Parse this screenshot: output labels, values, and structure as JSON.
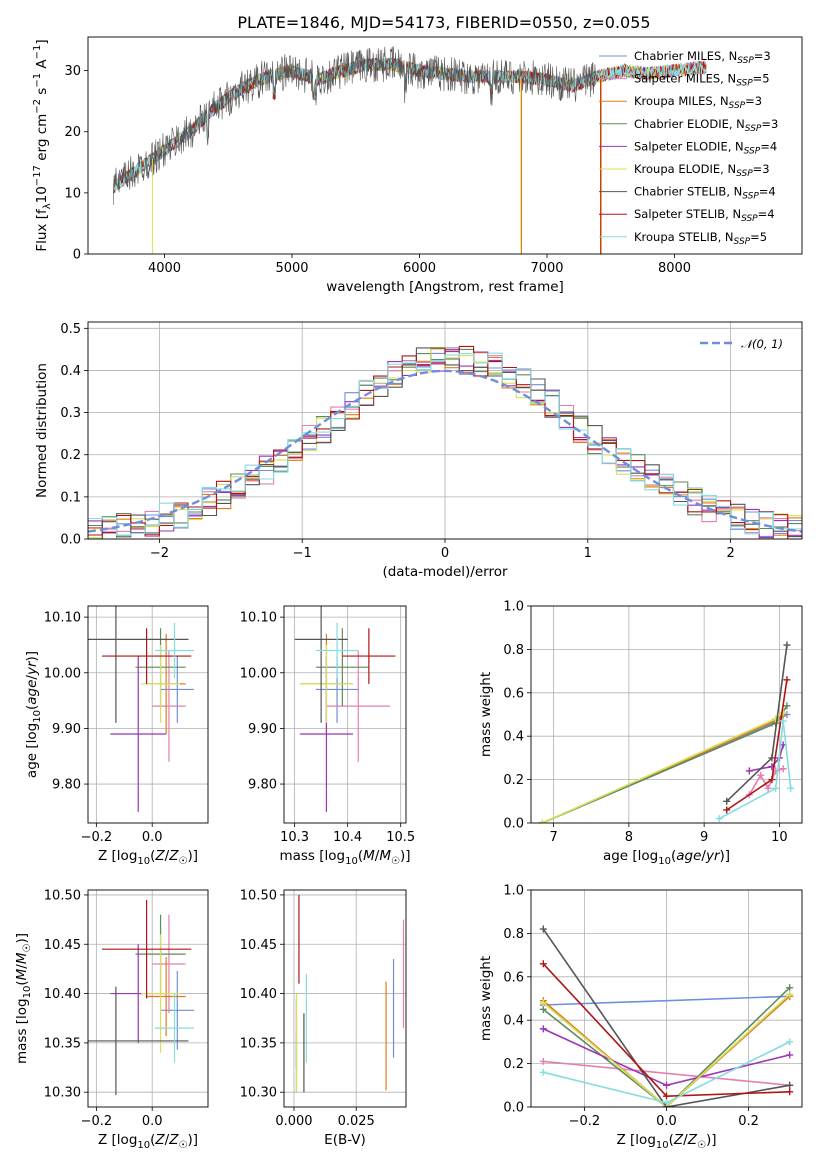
{
  "title": "PLATE=1846, MJD=54173, FIBERID=0550, z=0.055",
  "colors": {
    "Chabrier MILES": "#6f8fdc",
    "Salpeter MILES": "#e57fb0",
    "Kroupa MILES": "#e07b1c",
    "Chabrier ELODIE": "#5f8a5f",
    "Salpeter ELODIE": "#9b35b8",
    "Kroupa ELODIE": "#d7e05a",
    "Chabrier STELIB": "#555555",
    "Salpeter STELIB": "#b01515",
    "Kroupa STELIB": "#84dde0",
    "normal": "#6f8fdc",
    "grid": "#b0b0b0"
  },
  "chart_data": [
    {
      "id": "spectrum",
      "type": "line",
      "xlabel": "wavelength [Angstrom, rest frame]",
      "ylabel": "Flux [f_λ 10^-17 erg cm^-2 s^-1 A^-1]",
      "xlim": [
        3400,
        9000
      ],
      "ylim": [
        0,
        35.5
      ],
      "xticks": [
        4000,
        5000,
        6000,
        7000,
        8000
      ],
      "yticks": [
        0,
        10,
        20,
        30
      ],
      "grid": false,
      "legend_position": "right",
      "legend": [
        {
          "name": "Chabrier MILES",
          "sub": "N",
          "subscript": "SSP",
          "suffix": "=3"
        },
        {
          "name": "Salpeter MILES",
          "sub": "N",
          "subscript": "SSP",
          "suffix": "=5"
        },
        {
          "name": "Kroupa MILES",
          "sub": "N",
          "subscript": "SSP",
          "suffix": "=3"
        },
        {
          "name": "Chabrier ELODIE",
          "sub": "N",
          "subscript": "SSP",
          "suffix": "=3"
        },
        {
          "name": "Salpeter ELODIE",
          "sub": "N",
          "subscript": "SSP",
          "suffix": "=4"
        },
        {
          "name": "Kroupa ELODIE",
          "sub": "N",
          "subscript": "SSP",
          "suffix": "=3"
        },
        {
          "name": "Chabrier STELIB",
          "sub": "N",
          "subscript": "SSP",
          "suffix": "=4"
        },
        {
          "name": "Salpeter STELIB",
          "sub": "N",
          "subscript": "SSP",
          "suffix": "=4"
        },
        {
          "name": "Kroupa STELIB",
          "sub": "N",
          "subscript": "SSP",
          "suffix": "=5"
        }
      ],
      "continuum": [
        [
          3600,
          11
        ],
        [
          3800,
          14
        ],
        [
          4000,
          17
        ],
        [
          4200,
          20
        ],
        [
          4400,
          24
        ],
        [
          4600,
          27
        ],
        [
          4800,
          29
        ],
        [
          5000,
          30
        ],
        [
          5200,
          28.5
        ],
        [
          5400,
          30
        ],
        [
          5600,
          31
        ],
        [
          5800,
          31
        ],
        [
          6000,
          30
        ],
        [
          6200,
          29.5
        ],
        [
          6400,
          29
        ],
        [
          6600,
          29
        ],
        [
          6800,
          29
        ],
        [
          7000,
          28.5
        ],
        [
          7200,
          27.5
        ],
        [
          7400,
          29
        ],
        [
          7600,
          30
        ],
        [
          7800,
          29.5
        ],
        [
          8000,
          30
        ],
        [
          8200,
          30.5
        ]
      ],
      "drops": [
        {
          "series": "Kroupa ELODIE",
          "x": 3905,
          "to": 0
        },
        {
          "series": "Kroupa ELODIE",
          "x": 6795,
          "to": 0
        },
        {
          "series": "Kroupa MILES",
          "x": 6800,
          "to": 0
        },
        {
          "series": "Salpeter STELIB",
          "x": 7420,
          "to": 0
        },
        {
          "series": "Kroupa MILES",
          "x": 7425,
          "to": 0
        }
      ]
    },
    {
      "id": "residual-histogram",
      "type": "line",
      "xlabel": "(data-model)/error",
      "ylabel": "Normed distribution",
      "xlim": [
        -2.5,
        2.5
      ],
      "ylim": [
        0,
        0.515
      ],
      "xticks": [
        -2,
        -1,
        0,
        1,
        2
      ],
      "yticks": [
        0.0,
        0.1,
        0.2,
        0.3,
        0.4,
        0.5
      ],
      "grid": true,
      "legend_position": "top-right",
      "legend": [
        {
          "name": "𝒩(0, 1)",
          "style": "dashed"
        }
      ],
      "bin_width": 0.1,
      "bin_start": -2.5,
      "envelope": [
        0.02,
        0.025,
        0.03,
        0.035,
        0.04,
        0.05,
        0.06,
        0.075,
        0.09,
        0.105,
        0.125,
        0.145,
        0.165,
        0.185,
        0.21,
        0.235,
        0.26,
        0.29,
        0.32,
        0.345,
        0.37,
        0.39,
        0.41,
        0.42,
        0.425,
        0.43,
        0.425,
        0.42,
        0.41,
        0.39,
        0.37,
        0.345,
        0.32,
        0.29,
        0.26,
        0.235,
        0.21,
        0.185,
        0.165,
        0.145,
        0.125,
        0.105,
        0.09,
        0.075,
        0.06,
        0.05,
        0.04,
        0.035,
        0.03,
        0.025
      ]
    },
    {
      "id": "age-vs-z",
      "type": "scatter",
      "xlabel": "Z [log10(Z/Z☉)]",
      "ylabel": "age  [log10(age/yr)]",
      "xlim": [
        -0.23,
        0.2
      ],
      "ylim": [
        9.73,
        10.12
      ],
      "xticks": [
        -0.2,
        0.0
      ],
      "yticks": [
        9.8,
        9.9,
        10.0,
        10.1
      ],
      "grid": true,
      "points": [
        {
          "series": "Chabrier MILES",
          "x": 0.09,
          "y": 9.97,
          "xerr": 0.06,
          "yerr": 0.06
        },
        {
          "series": "Salpeter MILES",
          "x": 0.06,
          "y": 9.94,
          "xerr": 0.06,
          "yerr": 0.1
        },
        {
          "series": "Kroupa MILES",
          "x": 0.05,
          "y": 9.98,
          "xerr": 0.07,
          "yerr": 0.09
        },
        {
          "series": "Chabrier ELODIE",
          "x": 0.03,
          "y": 10.01,
          "xerr": 0.09,
          "yerr": 0.07
        },
        {
          "series": "Salpeter ELODIE",
          "x": -0.05,
          "y": 9.89,
          "xerr": 0.1,
          "yerr": 0.14
        },
        {
          "series": "Kroupa ELODIE",
          "x": 0.03,
          "y": 9.98,
          "xerr": 0.07,
          "yerr": 0.07
        },
        {
          "series": "Chabrier STELIB",
          "x": -0.13,
          "y": 10.06,
          "xerr": 0.26,
          "yerr": 0.15
        },
        {
          "series": "Salpeter STELIB",
          "x": -0.02,
          "y": 10.03,
          "xerr": 0.16,
          "yerr": 0.05
        },
        {
          "series": "Kroupa STELIB",
          "x": 0.08,
          "y": 10.04,
          "xerr": 0.07,
          "yerr": 0.05
        }
      ]
    },
    {
      "id": "age-vs-mass",
      "type": "scatter",
      "xlabel": "mass [log10(M/M☉)]",
      "ylabel": "",
      "xlim": [
        10.28,
        10.51
      ],
      "ylim": [
        9.73,
        10.12
      ],
      "xticks": [
        10.3,
        10.4,
        10.5
      ],
      "yticks": [
        9.8,
        9.9,
        10.0,
        10.1
      ],
      "grid": true,
      "points": [
        {
          "series": "Chabrier MILES",
          "x": 10.38,
          "y": 9.97,
          "xerr": 0.04,
          "yerr": 0.06
        },
        {
          "series": "Salpeter MILES",
          "x": 10.42,
          "y": 9.94,
          "xerr": 0.06,
          "yerr": 0.1
        },
        {
          "series": "Kroupa MILES",
          "x": 10.36,
          "y": 9.98,
          "xerr": 0.05,
          "yerr": 0.09
        },
        {
          "series": "Chabrier ELODIE",
          "x": 10.39,
          "y": 10.01,
          "xerr": 0.05,
          "yerr": 0.07
        },
        {
          "series": "Salpeter ELODIE",
          "x": 10.36,
          "y": 9.89,
          "xerr": 0.05,
          "yerr": 0.14
        },
        {
          "series": "Kroupa ELODIE",
          "x": 10.36,
          "y": 9.98,
          "xerr": 0.05,
          "yerr": 0.07
        },
        {
          "series": "Chabrier STELIB",
          "x": 10.35,
          "y": 10.06,
          "xerr": 0.05,
          "yerr": 0.15
        },
        {
          "series": "Salpeter STELIB",
          "x": 10.44,
          "y": 10.03,
          "xerr": 0.05,
          "yerr": 0.05
        },
        {
          "series": "Kroupa STELIB",
          "x": 10.38,
          "y": 10.04,
          "xerr": 0.04,
          "yerr": 0.05
        }
      ]
    },
    {
      "id": "weight-vs-age",
      "type": "line",
      "xlabel": "age  [log10(age/yr)]",
      "ylabel": "mass weight",
      "xlim": [
        6.7,
        10.3
      ],
      "ylim": [
        0,
        1
      ],
      "xticks": [
        7,
        8,
        9,
        10
      ],
      "yticks": [
        0.0,
        0.2,
        0.4,
        0.6,
        0.8,
        1.0
      ],
      "grid": true,
      "series": [
        {
          "name": "Chabrier MILES",
          "x": [
            6.85,
            9.9,
            10.1
          ],
          "y": [
            0.0,
            0.46,
            0.5
          ]
        },
        {
          "name": "Salpeter MILES",
          "x": [
            9.6,
            9.75,
            9.85,
            9.95,
            10.05
          ],
          "y": [
            0.13,
            0.22,
            0.16,
            0.24,
            0.25
          ]
        },
        {
          "name": "Kroupa MILES",
          "x": [
            6.85,
            10.0,
            10.05
          ],
          "y": [
            0.0,
            0.48,
            0.5
          ]
        },
        {
          "name": "Chabrier ELODIE",
          "x": [
            6.85,
            9.95,
            10.1
          ],
          "y": [
            0.0,
            0.46,
            0.54
          ]
        },
        {
          "name": "Salpeter ELODIE",
          "x": [
            9.6,
            9.9,
            10.0,
            10.05
          ],
          "y": [
            0.24,
            0.26,
            0.3,
            0.36
          ]
        },
        {
          "name": "Kroupa ELODIE",
          "x": [
            6.85,
            9.95,
            10.05
          ],
          "y": [
            0.0,
            0.48,
            0.51
          ]
        },
        {
          "name": "Chabrier STELIB",
          "x": [
            9.3,
            9.9,
            10.1
          ],
          "y": [
            0.1,
            0.3,
            0.82
          ]
        },
        {
          "name": "Salpeter STELIB",
          "x": [
            9.3,
            9.9,
            10.1
          ],
          "y": [
            0.06,
            0.2,
            0.66
          ]
        },
        {
          "name": "Kroupa STELIB",
          "x": [
            9.2,
            9.95,
            10.05,
            10.15
          ],
          "y": [
            0.02,
            0.16,
            0.47,
            0.16
          ]
        }
      ]
    },
    {
      "id": "mass-vs-z",
      "type": "scatter",
      "xlabel": "Z [log10(Z/Z☉)]",
      "ylabel": "mass [log10(M/M☉)]",
      "xlim": [
        -0.23,
        0.2
      ],
      "ylim": [
        10.285,
        10.505
      ],
      "xticks": [
        -0.2,
        0.0
      ],
      "yticks": [
        10.3,
        10.35,
        10.4,
        10.45,
        10.5
      ],
      "grid": true,
      "points": [
        {
          "series": "Chabrier MILES",
          "x": 0.09,
          "y": 10.383,
          "xerr": 0.06,
          "yerr": 0.04
        },
        {
          "series": "Salpeter MILES",
          "x": 0.06,
          "y": 10.43,
          "xerr": 0.06,
          "yerr": 0.05
        },
        {
          "series": "Kroupa MILES",
          "x": 0.05,
          "y": 10.397,
          "xerr": 0.07,
          "yerr": 0.04
        },
        {
          "series": "Chabrier ELODIE",
          "x": 0.03,
          "y": 10.44,
          "xerr": 0.09,
          "yerr": 0.04
        },
        {
          "series": "Salpeter ELODIE",
          "x": -0.05,
          "y": 10.4,
          "xerr": 0.1,
          "yerr": 0.05
        },
        {
          "series": "Kroupa ELODIE",
          "x": 0.03,
          "y": 10.4,
          "xerr": 0.07,
          "yerr": 0.06
        },
        {
          "series": "Chabrier STELIB",
          "x": -0.13,
          "y": 10.352,
          "xerr": 0.26,
          "yerr": 0.055
        },
        {
          "series": "Salpeter STELIB",
          "x": -0.02,
          "y": 10.445,
          "xerr": 0.16,
          "yerr": 0.05
        },
        {
          "series": "Kroupa STELIB",
          "x": 0.08,
          "y": 10.365,
          "xerr": 0.07,
          "yerr": 0.035
        }
      ]
    },
    {
      "id": "mass-vs-ebv",
      "type": "scatter",
      "xlabel": "E(B-V)",
      "ylabel": "",
      "xlim": [
        -0.004,
        0.045
      ],
      "ylim": [
        10.285,
        10.505
      ],
      "xticks": [
        0.0,
        0.025
      ],
      "yticks": [
        10.3,
        10.35,
        10.4,
        10.45,
        10.5
      ],
      "grid": true,
      "points": [
        {
          "series": "Chabrier MILES",
          "x": 0.04,
          "y": 10.385,
          "xerr": 0,
          "yerr": 0.05
        },
        {
          "series": "Salpeter MILES",
          "x": 0.044,
          "y": 10.42,
          "xerr": 0,
          "yerr": 0.055
        },
        {
          "series": "Kroupa MILES",
          "x": 0.037,
          "y": 10.357,
          "xerr": 0,
          "yerr": 0.055
        },
        {
          "series": "Chabrier ELODIE",
          "x": 0.001,
          "y": 10.33,
          "xerr": 0,
          "yerr": 0.03
        },
        {
          "series": "Salpeter ELODIE",
          "x": 0.001,
          "y": 10.36,
          "xerr": 0,
          "yerr": 0.035
        },
        {
          "series": "Kroupa ELODIE",
          "x": 0.001,
          "y": 10.35,
          "xerr": 0,
          "yerr": 0.05
        },
        {
          "series": "Chabrier STELIB",
          "x": 0.004,
          "y": 10.34,
          "xerr": 0,
          "yerr": 0.04
        },
        {
          "series": "Salpeter STELIB",
          "x": 0.002,
          "y": 10.455,
          "xerr": 0,
          "yerr": 0.045
        },
        {
          "series": "Kroupa STELIB",
          "x": 0.005,
          "y": 10.375,
          "xerr": 0,
          "yerr": 0.045
        }
      ]
    },
    {
      "id": "weight-vs-z",
      "type": "line",
      "xlabel": "Z [log10(Z/Z☉)]",
      "ylabel": "mass weight",
      "xlim": [
        -0.33,
        0.33
      ],
      "ylim": [
        0,
        1
      ],
      "xticks": [
        -0.2,
        0.0,
        0.2
      ],
      "yticks": [
        0.0,
        0.2,
        0.4,
        0.6,
        0.8,
        1.0
      ],
      "grid": true,
      "series": [
        {
          "name": "Chabrier MILES",
          "x": [
            -0.3,
            0.3
          ],
          "y": [
            0.47,
            0.51
          ]
        },
        {
          "name": "Salpeter MILES",
          "x": [
            -0.3,
            0.3
          ],
          "y": [
            0.21,
            0.1
          ]
        },
        {
          "name": "Kroupa MILES",
          "x": [
            -0.3,
            0.0,
            0.3
          ],
          "y": [
            0.49,
            0.0,
            0.51
          ]
        },
        {
          "name": "Chabrier ELODIE",
          "x": [
            -0.3,
            0.0,
            0.3
          ],
          "y": [
            0.45,
            0.0,
            0.55
          ]
        },
        {
          "name": "Salpeter ELODIE",
          "x": [
            -0.3,
            0.0,
            0.3
          ],
          "y": [
            0.36,
            0.1,
            0.24
          ]
        },
        {
          "name": "Kroupa ELODIE",
          "x": [
            -0.3,
            0.0,
            0.3
          ],
          "y": [
            0.48,
            0.0,
            0.52
          ]
        },
        {
          "name": "Chabrier STELIB",
          "x": [
            -0.3,
            0.0,
            0.3
          ],
          "y": [
            0.82,
            0.0,
            0.1
          ]
        },
        {
          "name": "Salpeter STELIB",
          "x": [
            -0.3,
            0.0,
            0.3
          ],
          "y": [
            0.66,
            0.05,
            0.07
          ]
        },
        {
          "name": "Kroupa STELIB",
          "x": [
            -0.3,
            0.0,
            0.3
          ],
          "y": [
            0.16,
            0.02,
            0.3
          ]
        }
      ]
    }
  ]
}
